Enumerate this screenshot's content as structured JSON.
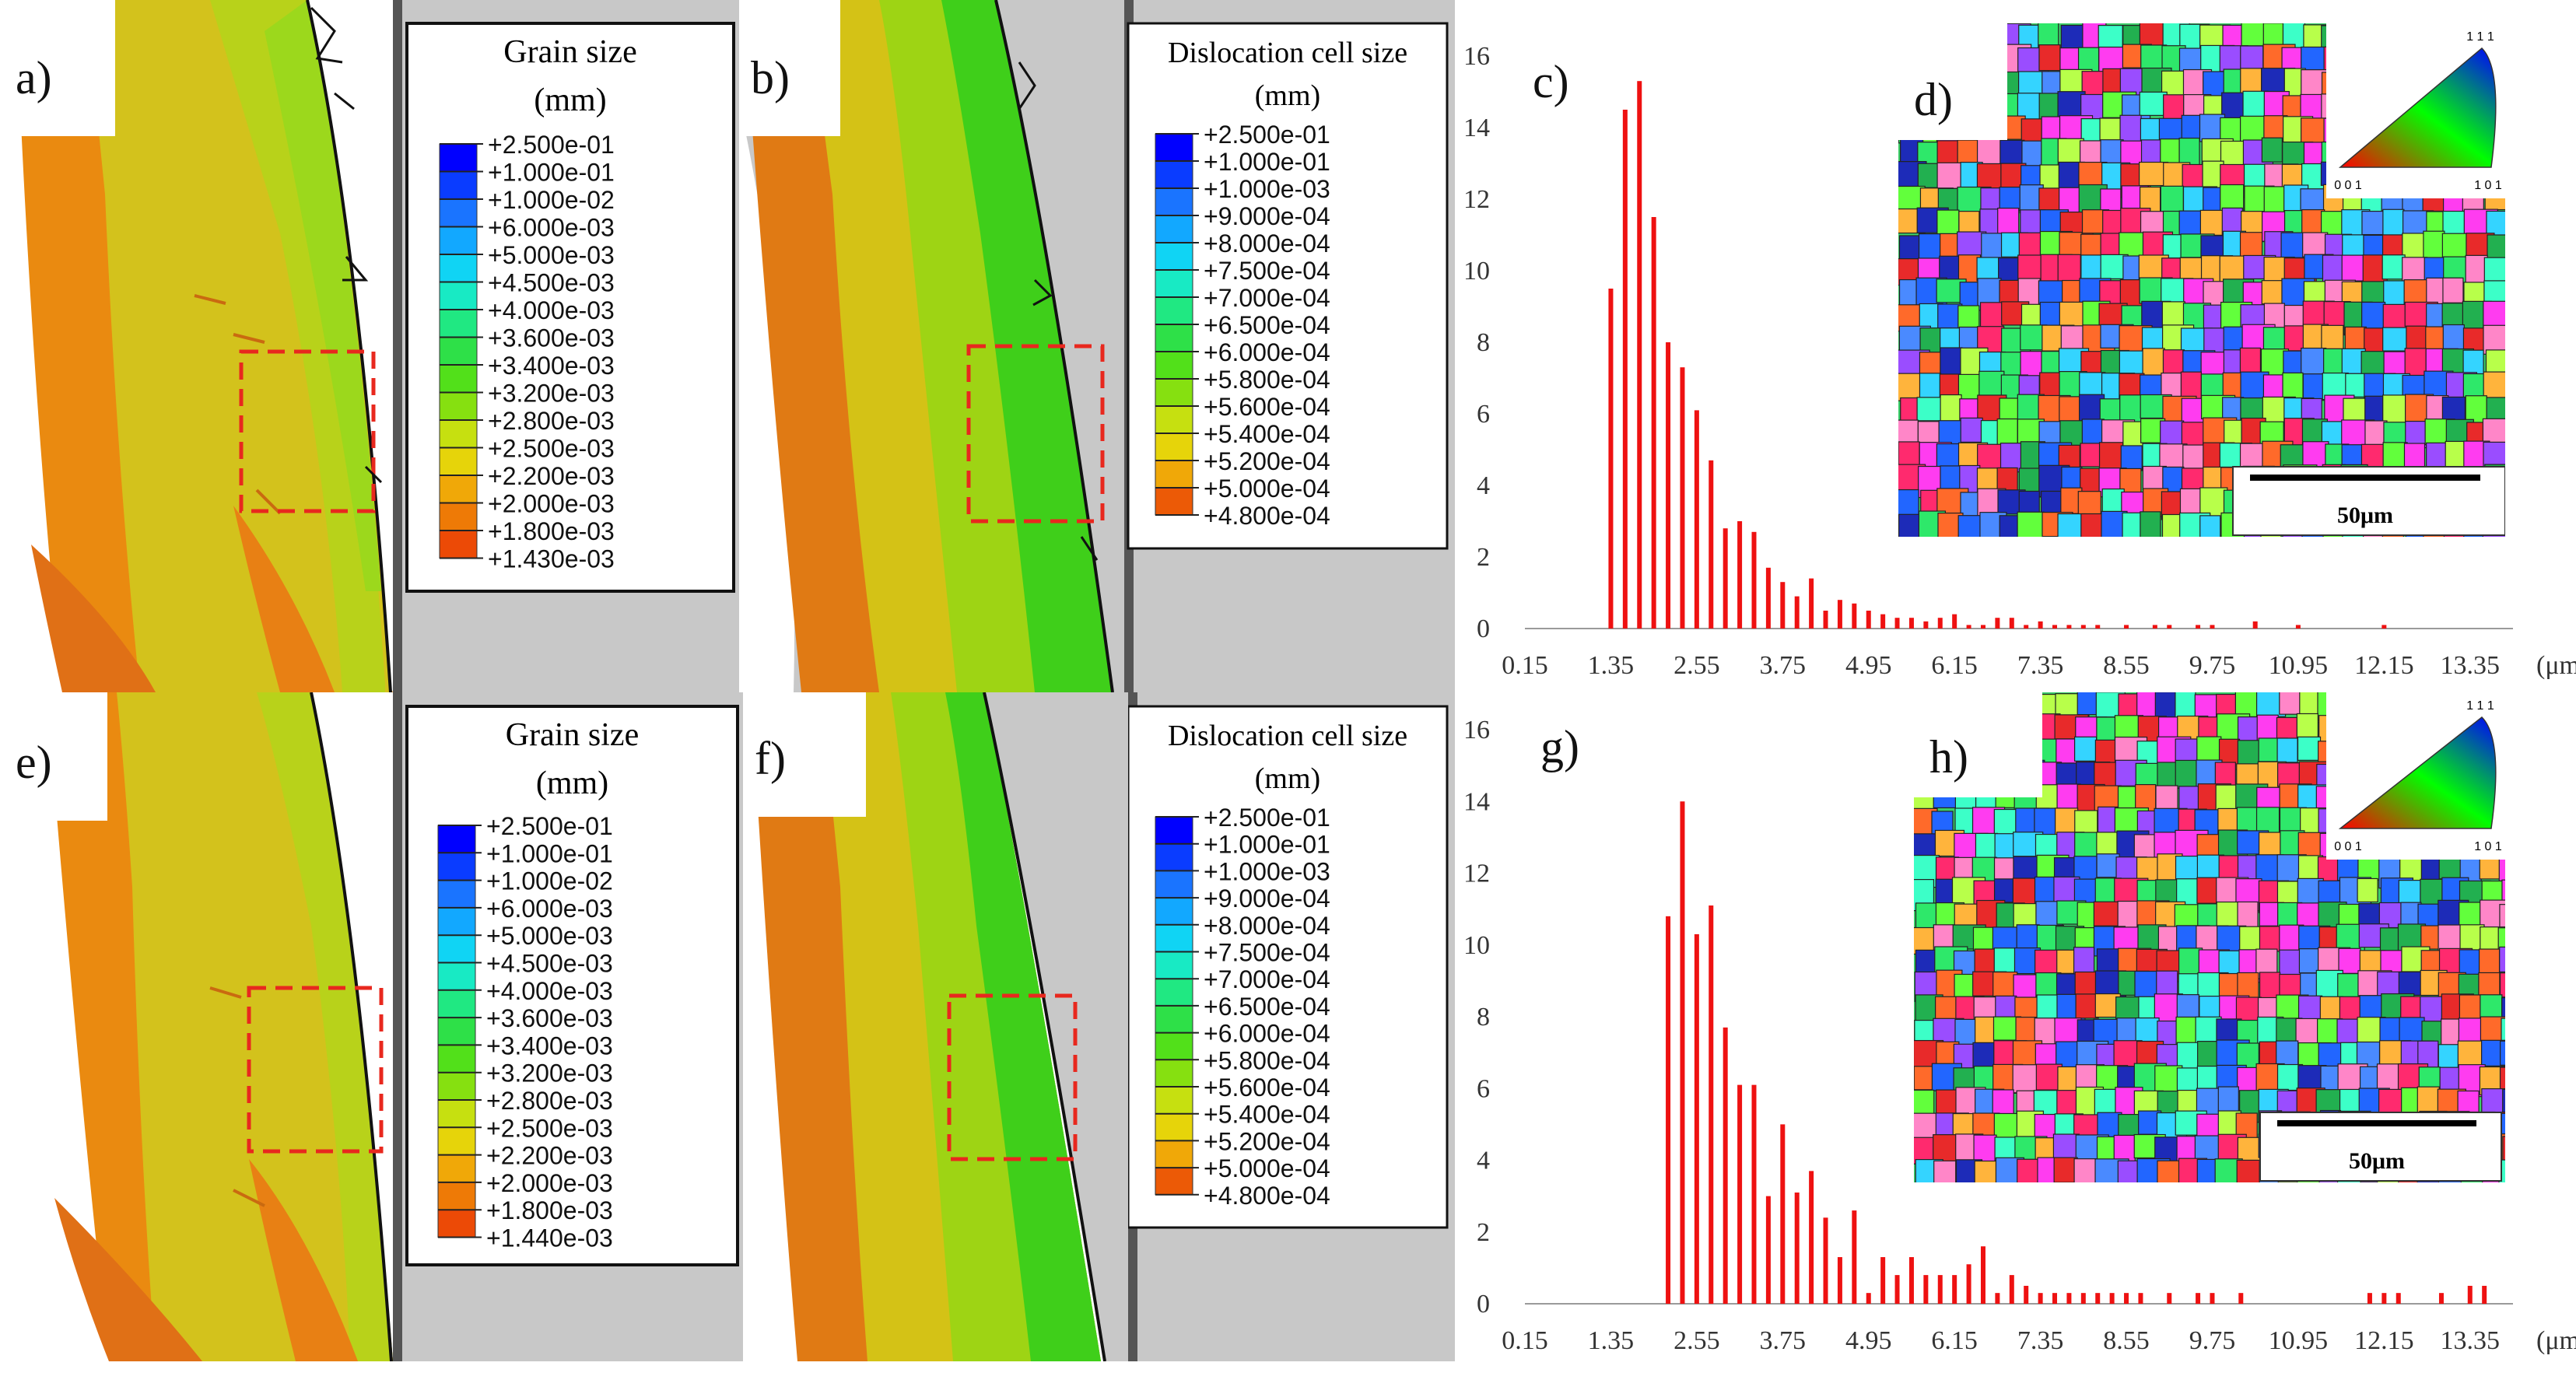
{
  "panels": {
    "a": {
      "label": "a)"
    },
    "b": {
      "label": "b)"
    },
    "c": {
      "label": "c)"
    },
    "d": {
      "label": "d)",
      "scale": "50μm",
      "ipf_corners": [
        "1 1 1",
        "0 0 1",
        "1 0 1"
      ]
    },
    "e": {
      "label": "e)"
    },
    "f": {
      "label": "f)"
    },
    "g": {
      "label": "g)"
    },
    "h": {
      "label": "h)",
      "scale": "50μm",
      "ipf_corners": [
        "1 1 1",
        "0 0 1",
        "1 0 1"
      ]
    }
  },
  "legends": {
    "grain_top": {
      "title": "Grain size",
      "unit": "(mm)",
      "values": [
        "+2.500e-01",
        "+1.000e-01",
        "+1.000e-02",
        "+6.000e-03",
        "+5.000e-03",
        "+4.500e-03",
        "+4.000e-03",
        "+3.600e-03",
        "+3.400e-03",
        "+3.200e-03",
        "+2.800e-03",
        "+2.500e-03",
        "+2.200e-03",
        "+2.000e-03",
        "+1.800e-03",
        "+1.430e-03"
      ]
    },
    "disl_top": {
      "title": "Dislocation cell size",
      "unit": "(mm)",
      "values": [
        "+2.500e-01",
        "+1.000e-01",
        "+1.000e-03",
        "+9.000e-04",
        "+8.000e-04",
        "+7.500e-04",
        "+7.000e-04",
        "+6.500e-04",
        "+6.000e-04",
        "+5.800e-04",
        "+5.600e-04",
        "+5.400e-04",
        "+5.200e-04",
        "+5.000e-04",
        "+4.800e-04"
      ]
    },
    "grain_bottom": {
      "title": "Grain size",
      "unit": "(mm)",
      "values": [
        "+2.500e-01",
        "+1.000e-01",
        "+1.000e-02",
        "+6.000e-03",
        "+5.000e-03",
        "+4.500e-03",
        "+4.000e-03",
        "+3.600e-03",
        "+3.400e-03",
        "+3.200e-03",
        "+2.800e-03",
        "+2.500e-03",
        "+2.200e-03",
        "+2.000e-03",
        "+1.800e-03",
        "+1.440e-03"
      ]
    },
    "disl_bottom": {
      "title": "Dislocation cell size",
      "unit": "(mm)",
      "values": [
        "+2.500e-01",
        "+1.000e-01",
        "+1.000e-03",
        "+9.000e-04",
        "+8.000e-04",
        "+7.500e-04",
        "+7.000e-04",
        "+6.500e-04",
        "+6.000e-04",
        "+5.800e-04",
        "+5.600e-04",
        "+5.400e-04",
        "+5.200e-04",
        "+5.000e-04",
        "+4.800e-04"
      ]
    },
    "grain_colors": [
      "#0000ff",
      "#0a3cff",
      "#1a74ff",
      "#12a8ff",
      "#10d4f4",
      "#18eac4",
      "#20e882",
      "#2ee048",
      "#52e01a",
      "#86e010",
      "#c6e010",
      "#e6d40a",
      "#f0a808",
      "#ee7a06",
      "#ec4a06",
      "#ff0000"
    ],
    "disl_colors": [
      "#0000ff",
      "#0a3cff",
      "#1a74ff",
      "#12a8ff",
      "#10d4f4",
      "#18eac4",
      "#20e882",
      "#2ee048",
      "#52e01a",
      "#86e010",
      "#c6e010",
      "#e6d40a",
      "#f0a808",
      "#ec5a06",
      "#ff0000"
    ]
  },
  "chart_data": [
    {
      "type": "bar",
      "panel": "c",
      "title": "",
      "xlabel": "(μm)",
      "ylabel": "",
      "ylim": [
        0,
        16
      ],
      "yticks": [
        0,
        2,
        4,
        6,
        8,
        10,
        12,
        14,
        16
      ],
      "xlim": [
        0.15,
        13.95
      ],
      "xtick_labels": [
        "0.15",
        "1.35",
        "2.55",
        "3.75",
        "4.95",
        "6.15",
        "7.35",
        "8.55",
        "9.75",
        "10.95",
        "12.15",
        "13.35"
      ],
      "x": [
        1.35,
        1.55,
        1.75,
        1.95,
        2.15,
        2.35,
        2.55,
        2.75,
        2.95,
        3.15,
        3.35,
        3.55,
        3.75,
        3.95,
        4.15,
        4.35,
        4.55,
        4.75,
        4.95,
        5.15,
        5.35,
        5.55,
        5.75,
        5.95,
        6.15,
        6.35,
        6.55,
        6.75,
        6.95,
        7.15,
        7.35,
        7.55,
        7.75,
        7.95,
        8.15,
        8.55,
        8.95,
        9.15,
        9.55,
        9.75,
        10.35,
        10.95,
        12.15
      ],
      "values": [
        9.5,
        14.5,
        15.3,
        11.5,
        8.0,
        7.3,
        6.1,
        4.7,
        2.8,
        3.0,
        2.7,
        1.7,
        1.3,
        0.9,
        1.4,
        0.5,
        0.8,
        0.7,
        0.5,
        0.4,
        0.3,
        0.3,
        0.2,
        0.3,
        0.4,
        0.1,
        0.1,
        0.3,
        0.3,
        0.1,
        0.2,
        0.1,
        0.1,
        0.1,
        0.1,
        0.1,
        0.1,
        0.1,
        0.1,
        0.1,
        0.2,
        0.1,
        0.1
      ],
      "color": "#ee1111"
    },
    {
      "type": "bar",
      "panel": "g",
      "title": "",
      "xlabel": "(μm)",
      "ylabel": "",
      "ylim": [
        0,
        16
      ],
      "yticks": [
        0,
        2,
        4,
        6,
        8,
        10,
        12,
        14,
        16
      ],
      "xlim": [
        0.15,
        13.95
      ],
      "xtick_labels": [
        "0.15",
        "1.35",
        "2.55",
        "3.75",
        "4.95",
        "6.15",
        "7.35",
        "8.55",
        "9.75",
        "10.95",
        "12.15",
        "13.35"
      ],
      "x": [
        2.15,
        2.35,
        2.55,
        2.75,
        2.95,
        3.15,
        3.35,
        3.55,
        3.75,
        3.95,
        4.15,
        4.35,
        4.55,
        4.75,
        4.95,
        5.15,
        5.35,
        5.55,
        5.75,
        5.95,
        6.15,
        6.35,
        6.55,
        6.75,
        6.95,
        7.15,
        7.35,
        7.55,
        7.75,
        7.95,
        8.15,
        8.35,
        8.55,
        8.75,
        9.15,
        9.55,
        9.75,
        10.15,
        11.95,
        12.15,
        12.35,
        12.95,
        13.35,
        13.55
      ],
      "values": [
        10.8,
        14.0,
        10.3,
        11.1,
        7.7,
        6.1,
        6.1,
        3.0,
        5.0,
        3.1,
        3.7,
        2.4,
        1.3,
        2.6,
        0.3,
        1.3,
        0.8,
        1.3,
        0.8,
        0.8,
        0.8,
        1.1,
        1.6,
        0.3,
        0.8,
        0.5,
        0.3,
        0.3,
        0.3,
        0.3,
        0.3,
        0.3,
        0.3,
        0.3,
        0.3,
        0.3,
        0.3,
        0.3,
        0.3,
        0.3,
        0.3,
        0.3,
        0.5,
        0.5
      ],
      "color": "#ee1111"
    }
  ]
}
